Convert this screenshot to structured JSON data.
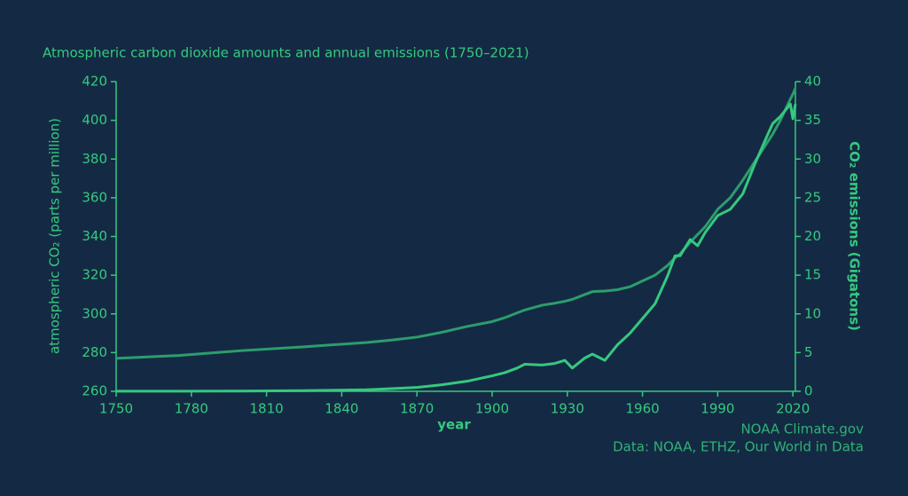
{
  "chart_data": {
    "type": "line",
    "title": "Atmospheric carbon dioxide amounts and annual emissions (1750–2021)",
    "x_label": "year",
    "y_label": "atmospheric CO₂ (parts per million)",
    "y2_label": "CO₂ emissions (Gigatons)",
    "credits": [
      "NOAA Climate.gov",
      "Data: NOAA, ETHZ, Our World in Data"
    ],
    "x": [
      1750,
      1775,
      1800,
      1825,
      1850,
      1860,
      1870,
      1880,
      1890,
      1900,
      1905,
      1910,
      1913,
      1920,
      1925,
      1929,
      1932,
      1937,
      1940,
      1945,
      1950,
      1955,
      1960,
      1965,
      1970,
      1973,
      1975,
      1979,
      1982,
      1985,
      1990,
      1995,
      2000,
      2005,
      2010,
      2012,
      2015,
      2019,
      2020,
      2021
    ],
    "xlim": [
      1750,
      2021
    ],
    "xticks": [
      1750,
      1780,
      1810,
      1840,
      1870,
      1900,
      1930,
      1960,
      1990,
      2020
    ],
    "ylim": [
      260,
      420
    ],
    "yticks": [
      260,
      280,
      300,
      320,
      340,
      360,
      380,
      400,
      420
    ],
    "y2lim": [
      0,
      40
    ],
    "y2ticks": [
      0,
      5,
      10,
      15,
      20,
      25,
      30,
      35,
      40
    ],
    "series": [
      {
        "color": "#2c9d6c",
        "values": [
          277.0,
          278.5,
          281,
          283,
          285.2,
          286.5,
          288,
          290.5,
          293.5,
          296,
          298,
          300.5,
          302,
          304.5,
          305.5,
          306.5,
          307.5,
          310,
          311.5,
          311.8,
          312.5,
          314,
          317,
          320,
          325,
          329,
          331,
          337,
          341,
          345,
          354,
          360,
          369,
          379,
          389,
          393,
          400,
          411,
          413.5,
          416.5
        ]
      },
      {
        "color": "#35c97e",
        "axis": "y2",
        "values": [
          0.01,
          0.02,
          0.03,
          0.08,
          0.2,
          0.35,
          0.5,
          0.85,
          1.3,
          2.0,
          2.4,
          3.0,
          3.5,
          3.4,
          3.6,
          4.0,
          3.0,
          4.3,
          4.8,
          4.0,
          6.0,
          7.5,
          9.4,
          11.3,
          14.9,
          17.5,
          17.5,
          19.6,
          18.8,
          20.5,
          22.7,
          23.5,
          25.5,
          29.5,
          33.2,
          34.6,
          35.5,
          37.1,
          35.2,
          37.1
        ]
      }
    ]
  }
}
